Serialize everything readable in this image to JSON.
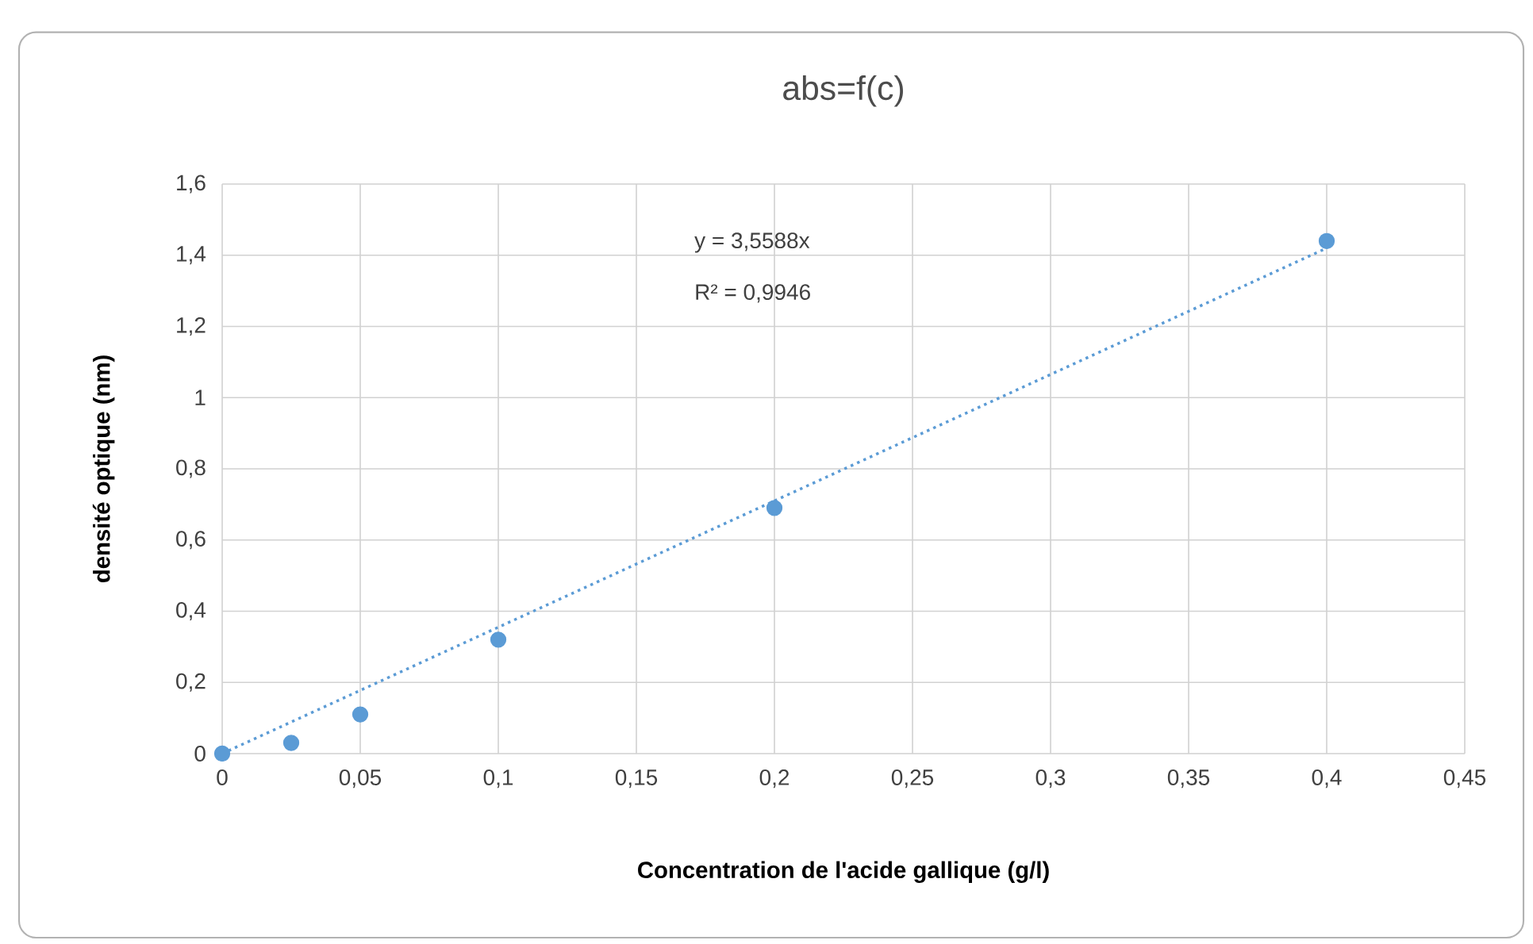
{
  "chart_data": {
    "type": "scatter",
    "title": "abs=f(c)",
    "xlabel": "Concentration de l'acide gallique (g/l)",
    "ylabel": "densité optique (nm)",
    "annotations": [
      "y = 3,5588x",
      "R² = 0,9946"
    ],
    "series": [
      {
        "type": "scatter",
        "color": "#5b9bd5",
        "x": [
          0,
          0.025,
          0.05,
          0.1,
          0.2,
          0.4
        ],
        "values": [
          0,
          0.03,
          0.11,
          0.32,
          0.69,
          1.44
        ]
      },
      {
        "type": "line",
        "color": "#5b9bd5",
        "marker": "none",
        "line_style": "dotted",
        "x": [
          0,
          0.4
        ],
        "values": [
          0,
          1.42
        ]
      }
    ],
    "xlim": [
      0,
      0.45
    ],
    "ylim": [
      0,
      1.6
    ],
    "xticks": [
      0,
      {
        "value": 0.05,
        "label": "0,05"
      },
      {
        "value": 0.1,
        "label": "0,1"
      },
      {
        "value": 0.15,
        "label": "0,15"
      },
      {
        "value": 0.2,
        "label": "0,2"
      },
      {
        "value": 0.25,
        "label": "0,25"
      },
      {
        "value": 0.3,
        "label": "0,3"
      },
      {
        "value": 0.35,
        "label": "0,35"
      },
      {
        "value": 0.4,
        "label": "0,4"
      },
      {
        "value": 0.45,
        "label": "0,45"
      }
    ],
    "yticks": [
      0,
      {
        "value": 0.2,
        "label": "0,2"
      },
      {
        "value": 0.4,
        "label": "0,4"
      },
      {
        "value": 0.6,
        "label": "0,6"
      },
      {
        "value": 0.8,
        "label": "0,8"
      },
      1,
      {
        "value": 1.2,
        "label": "1,2"
      },
      {
        "value": 1.4,
        "label": "1,4"
      },
      {
        "value": 1.6,
        "label": "1,6"
      }
    ],
    "grid": true,
    "marker": "circle"
  }
}
